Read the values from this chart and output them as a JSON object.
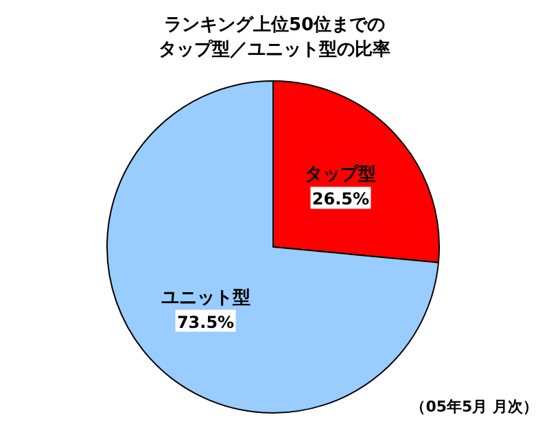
{
  "chart_data": {
    "type": "pie",
    "title": "ランキング上位50位までの",
    "subtitle": "タップ型／ユニット型の比率",
    "categories": [
      "タップ型",
      "ユニット型"
    ],
    "values": [
      26.5,
      73.5
    ],
    "value_labels": [
      "26.5%",
      "73.5%"
    ],
    "colors": [
      "#ff0000",
      "#99ccff"
    ],
    "annotations": [
      "（05年5月 月次）"
    ]
  }
}
